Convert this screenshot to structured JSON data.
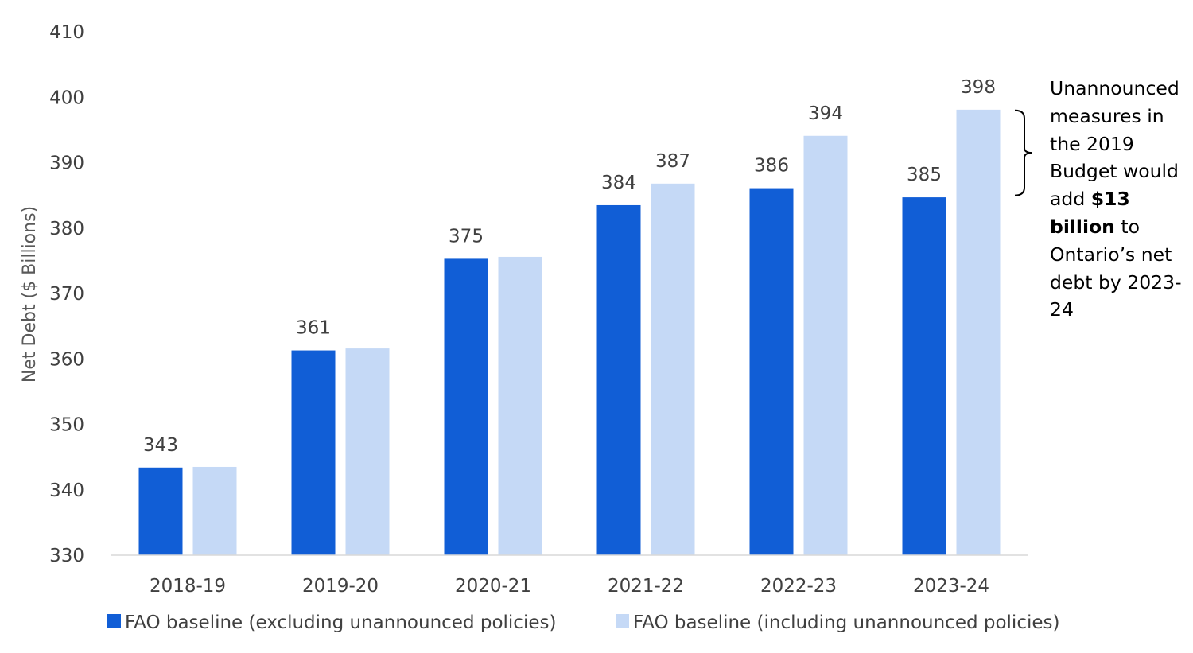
{
  "chart_data": {
    "type": "bar",
    "ylabel": "Net Debt ($ Billions)",
    "xlabel": "",
    "ylim": [
      330,
      410
    ],
    "yticks": [
      330,
      340,
      350,
      360,
      370,
      380,
      390,
      400,
      410
    ],
    "categories": [
      "2018-19",
      "2019-20",
      "2020-21",
      "2021-22",
      "2022-23",
      "2023-24"
    ],
    "series": [
      {
        "name": "FAO baseline (excluding unannounced policies)",
        "color": "#115ed6",
        "values": [
          343.4,
          361.3,
          375.3,
          383.5,
          386.1,
          384.7
        ],
        "labels": [
          "343",
          "361",
          "375",
          "384",
          "386",
          "385"
        ]
      },
      {
        "name": "FAO baseline (including unannounced policies)",
        "color": "#c5d9f6",
        "values": [
          343.5,
          361.6,
          375.6,
          386.8,
          394.1,
          398.1
        ],
        "labels": [
          "",
          "",
          "",
          "387",
          "394",
          "398"
        ]
      }
    ],
    "grid": false,
    "legend": "bottom",
    "annotation": {
      "bracket_range": [
        385,
        398
      ],
      "text_before": "Unannounced measures in the 2019 Budget would add ",
      "text_bold": "$13 billion",
      "text_after": " to Ontario’s net debt by 2023-24"
    }
  }
}
